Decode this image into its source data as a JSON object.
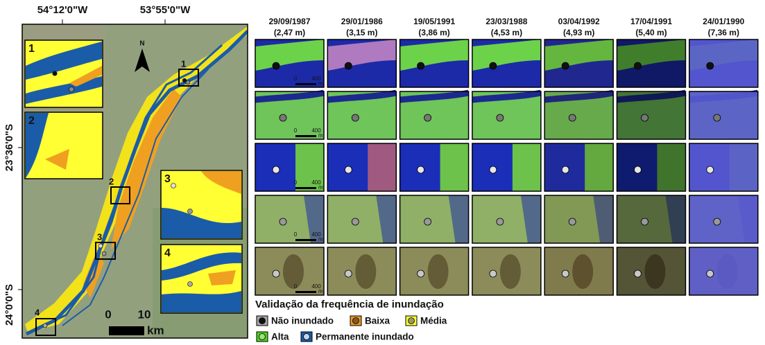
{
  "map": {
    "lon_labels": [
      "54°12'0\"W",
      "53°55'0\"W"
    ],
    "lat_labels": [
      "23°36'0\"S",
      "24°0'0\"S"
    ],
    "north": "N",
    "boxes": [
      "1",
      "2",
      "3",
      "4"
    ],
    "insets": [
      "1",
      "2",
      "3",
      "4"
    ],
    "scalebar": {
      "start": "0",
      "end": "10",
      "unit": "km"
    }
  },
  "columns": [
    {
      "date": "29/09/1987",
      "depth": "(2,47 m)"
    },
    {
      "date": "29/01/1986",
      "depth": "(3,15 m)"
    },
    {
      "date": "19/05/1991",
      "depth": "(3,86 m)"
    },
    {
      "date": "23/03/1988",
      "depth": "(4,53 m)"
    },
    {
      "date": "03/04/1992",
      "depth": "(4,93 m)"
    },
    {
      "date": "17/04/1991",
      "depth": "(5,40 m)"
    },
    {
      "date": "24/01/1990",
      "depth": "(7,36 m)"
    }
  ],
  "thumb_scale": {
    "start": "0",
    "end": "400",
    "unit": "m"
  },
  "legend": {
    "title": "Validação da frequência de inundação",
    "items": [
      {
        "label": "Não inundado",
        "color": "#a6a6a6",
        "dot": "#111111"
      },
      {
        "label": "Baixa",
        "color": "#e8962a",
        "dot": "#8a5a1a"
      },
      {
        "label": "Média",
        "color": "#ffff33",
        "dot": "#9a9a60"
      },
      {
        "label": "Alta",
        "color": "#4fd11e",
        "dot": "#9be07d"
      },
      {
        "label": "Permanente inundado",
        "color": "#1b5ca8",
        "dot": "#c8d4e6"
      }
    ]
  }
}
